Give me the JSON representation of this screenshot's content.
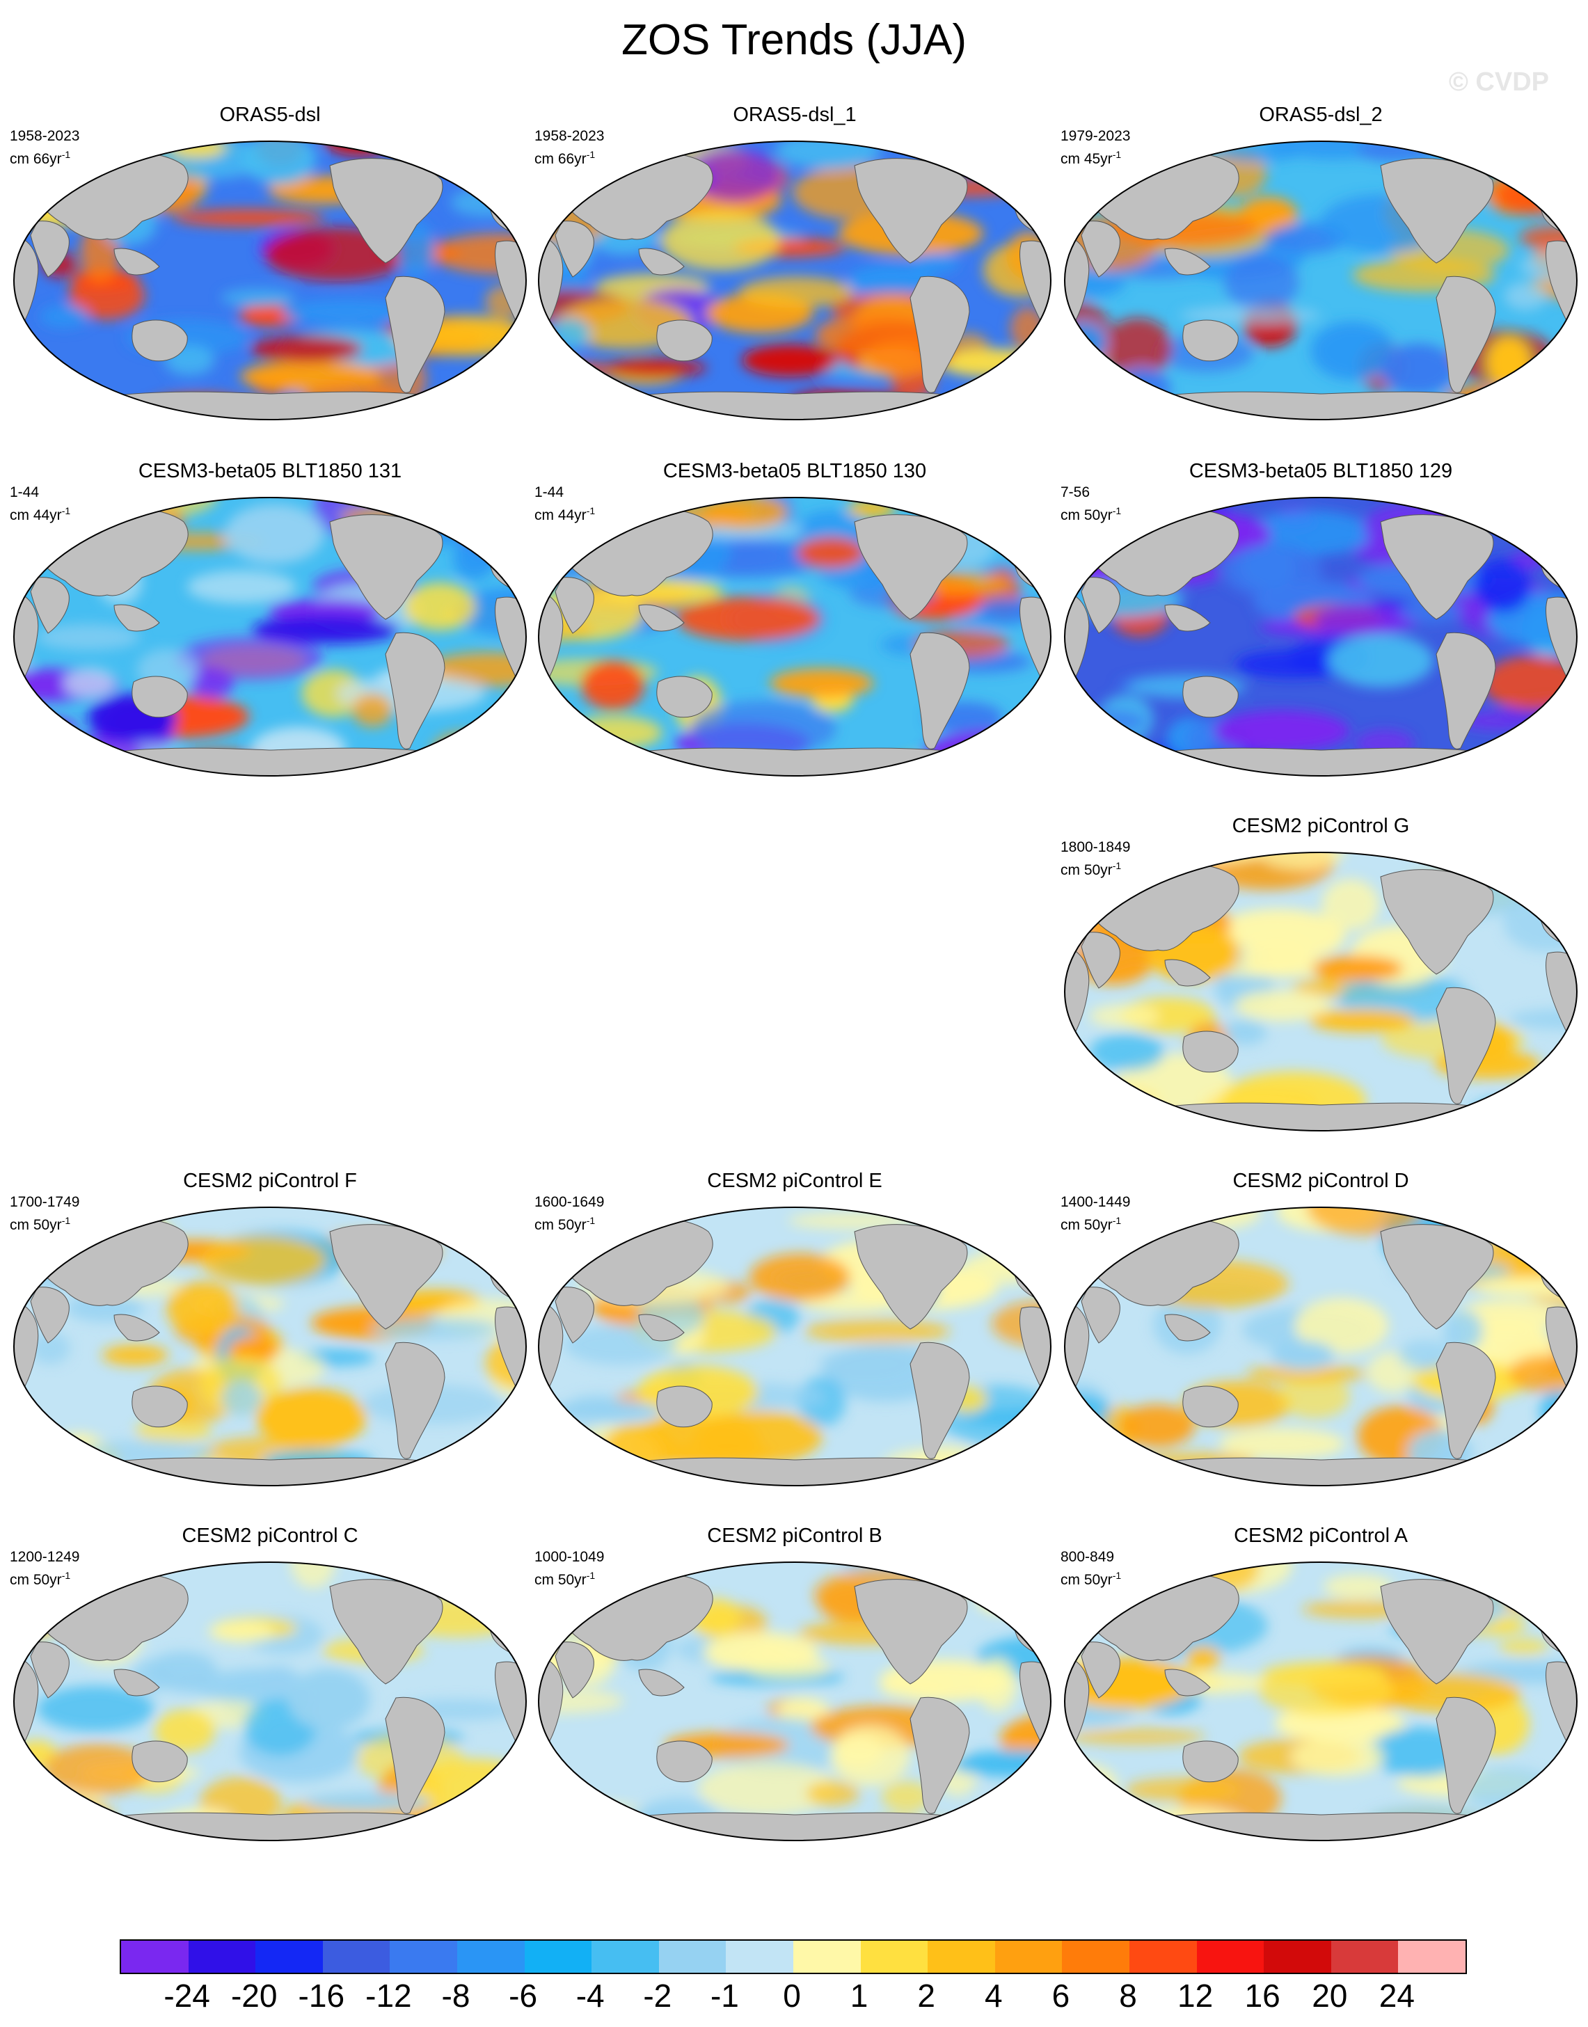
{
  "title": "ZOS Trends (JJA)",
  "watermark": "© CVDP",
  "units_prefix": "cm",
  "units_suffix": "yr",
  "units_exponent": "-1",
  "panels": [
    {
      "title": "ORAS5-dsl",
      "period": "1958-2023",
      "units_span": "66",
      "pattern": "oras"
    },
    {
      "title": "ORAS5-dsl_1",
      "period": "1958-2023",
      "units_span": "66",
      "pattern": "oras"
    },
    {
      "title": "ORAS5-dsl_2",
      "period": "1979-2023",
      "units_span": "45",
      "pattern": "oras2"
    },
    {
      "title": "CESM3-beta05 BLT1850 131",
      "period": "1-44",
      "units_span": "44",
      "pattern": "cesm3a"
    },
    {
      "title": "CESM3-beta05 BLT1850 130",
      "period": "1-44",
      "units_span": "44",
      "pattern": "cesm3b"
    },
    {
      "title": "CESM3-beta05 BLT1850 129",
      "period": "7-56",
      "units_span": "50",
      "pattern": "cesm3c"
    },
    {
      "title": "CESM2 piControl G",
      "period": "1800-1849",
      "units_span": "50",
      "pattern": "pic"
    },
    {
      "title": "CESM2 piControl F",
      "period": "1700-1749",
      "units_span": "50",
      "pattern": "pic"
    },
    {
      "title": "CESM2 piControl E",
      "period": "1600-1649",
      "units_span": "50",
      "pattern": "pic"
    },
    {
      "title": "CESM2 piControl D",
      "period": "1400-1449",
      "units_span": "50",
      "pattern": "pic"
    },
    {
      "title": "CESM2 piControl C",
      "period": "1200-1249",
      "units_span": "50",
      "pattern": "pic"
    },
    {
      "title": "CESM2 piControl B",
      "period": "1000-1049",
      "units_span": "50",
      "pattern": "pic"
    },
    {
      "title": "CESM2 piControl A",
      "period": "800-849",
      "units_span": "50",
      "pattern": "pic"
    }
  ],
  "colorbar": {
    "colors": [
      "#7a28f0",
      "#3010e8",
      "#1428f5",
      "#3c5ce0",
      "#3a7af0",
      "#2a95f5",
      "#12b0f5",
      "#46bef2",
      "#96d2f2",
      "#c2e4f5",
      "#fff8a8",
      "#ffe040",
      "#ffc018",
      "#ffa010",
      "#ff7c0a",
      "#ff4a12",
      "#f81410",
      "#d20a0a",
      "#d83a3a",
      "#ffb2b2"
    ],
    "labels": [
      "-24",
      "-20",
      "-16",
      "-12",
      "-8",
      "-6",
      "-4",
      "-2",
      "-1",
      "0",
      "1",
      "2",
      "4",
      "6",
      "8",
      "12",
      "16",
      "20",
      "24"
    ]
  },
  "land_color": "#c0c0c0"
}
